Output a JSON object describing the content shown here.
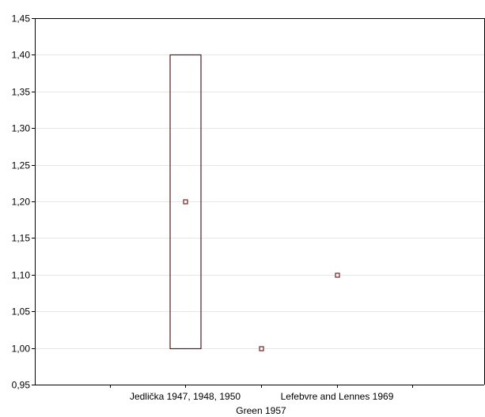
{
  "chart_data": {
    "type": "box",
    "title": "",
    "xlabel": "",
    "ylabel": "",
    "ylim": [
      0.95,
      1.45
    ],
    "y_ticks": [
      "0,95",
      "1,00",
      "1,05",
      "1,10",
      "1,15",
      "1,20",
      "1,25",
      "1,30",
      "1,35",
      "1,40",
      "1,45"
    ],
    "y_tick_values": [
      0.95,
      1.0,
      1.05,
      1.1,
      1.15,
      1.2,
      1.25,
      1.3,
      1.35,
      1.4,
      1.45
    ],
    "grid": "horizontal",
    "categories": [
      "Jedlička 1947, 1948, 1950",
      "Green 1957",
      "Lefebvre and Lennes 1969"
    ],
    "boxes": [
      {
        "category": "Jedlička 1947, 1948, 1950",
        "center": 1.2,
        "low": 1.0,
        "high": 1.4
      },
      {
        "category": "Green 1957",
        "center": 1.0,
        "low": 1.0,
        "high": 1.0
      },
      {
        "category": "Lefebvre and Lennes 1969",
        "center": 1.1,
        "low": 1.1,
        "high": 1.1
      }
    ],
    "colors": {
      "box_stroke": "#5a1a1a",
      "marker_stroke": "#7a1f1f",
      "axis": "#000000",
      "grid": "#e6e6e6"
    }
  }
}
